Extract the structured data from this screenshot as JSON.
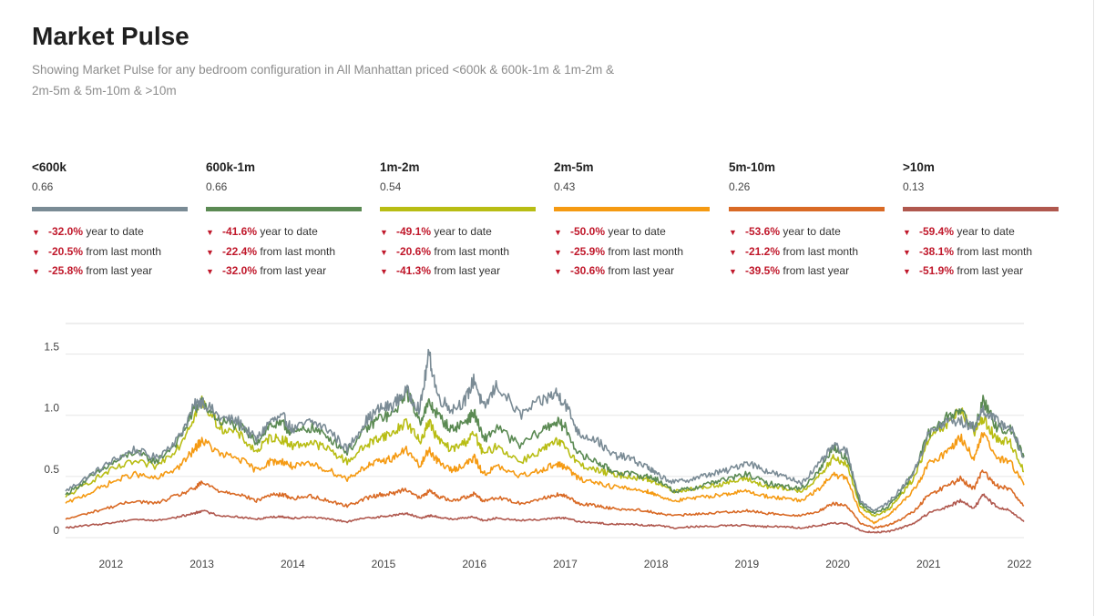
{
  "header": {
    "title": "Market Pulse",
    "subtitle": "Showing Market Pulse for any bedroom configuration in All Manhattan priced <600k & 600k-1m & 1m-2m & 2m-5m & 5m-10m & >10m"
  },
  "segments": [
    {
      "name": "<600k",
      "value": "0.66",
      "color": "#7a8b95",
      "ytd": "-32.0%",
      "mom": "-20.5%",
      "yoy": "-25.8%"
    },
    {
      "name": "600k-1m",
      "value": "0.66",
      "color": "#5b8a53",
      "ytd": "-41.6%",
      "mom": "-22.4%",
      "yoy": "-32.0%"
    },
    {
      "name": "1m-2m",
      "value": "0.54",
      "color": "#b8bd14",
      "ytd": "-49.1%",
      "mom": "-20.6%",
      "yoy": "-41.3%"
    },
    {
      "name": "2m-5m",
      "value": "0.43",
      "color": "#f59a12",
      "ytd": "-50.0%",
      "mom": "-25.9%",
      "yoy": "-30.6%"
    },
    {
      "name": "5m-10m",
      "value": "0.26",
      "color": "#d96a25",
      "ytd": "-53.6%",
      "mom": "-21.2%",
      "yoy": "-39.5%"
    },
    {
      "name": ">10m",
      "value": "0.13",
      "color": "#b0584e",
      "ytd": "-59.4%",
      "mom": "-38.1%",
      "yoy": "-51.9%"
    }
  ],
  "stat_labels": {
    "ytd": "year to date",
    "mom": "from last month",
    "yoy": "from last year"
  },
  "chart_data": {
    "type": "line",
    "xlim": [
      2011.5,
      2022.05
    ],
    "ylim": [
      0,
      1.75
    ],
    "x_ticks": [
      2012,
      2013,
      2014,
      2015,
      2016,
      2017,
      2018,
      2019,
      2020,
      2021,
      2022
    ],
    "x_tick_labels": [
      "2012",
      "2013",
      "2014",
      "2015",
      "2016",
      "2017",
      "2018",
      "2019",
      "2020",
      "2021",
      "2022"
    ],
    "y_ticks": [
      0,
      0.5,
      1.0,
      1.5
    ],
    "y_tick_labels": [
      "0",
      "0.5",
      "1.0",
      "1.5"
    ],
    "grid": true,
    "x": [
      2011.5,
      2011.75,
      2012.0,
      2012.25,
      2012.5,
      2012.75,
      2012.92,
      2013.0,
      2013.2,
      2013.4,
      2013.6,
      2013.75,
      2013.9,
      2014.0,
      2014.2,
      2014.4,
      2014.6,
      2014.8,
      2014.95,
      2015.1,
      2015.25,
      2015.4,
      2015.5,
      2015.6,
      2015.75,
      2015.9,
      2016.0,
      2016.1,
      2016.25,
      2016.5,
      2016.75,
      2016.9,
      2017.0,
      2017.15,
      2017.35,
      2017.5,
      2017.7,
      2017.9,
      2018.0,
      2018.2,
      2018.4,
      2018.6,
      2018.8,
      2019.0,
      2019.2,
      2019.4,
      2019.6,
      2019.8,
      2019.95,
      2020.1,
      2020.25,
      2020.4,
      2020.55,
      2020.7,
      2020.85,
      2021.0,
      2021.2,
      2021.35,
      2021.5,
      2021.6,
      2021.75,
      2021.9,
      2022.05
    ],
    "series": [
      {
        "name": "<600k",
        "values": [
          0.38,
          0.5,
          0.62,
          0.72,
          0.65,
          0.82,
          1.08,
          1.12,
          0.98,
          0.95,
          0.8,
          0.95,
          0.98,
          0.88,
          0.95,
          0.88,
          0.72,
          0.95,
          1.05,
          1.08,
          1.2,
          1.05,
          1.5,
          1.15,
          1.05,
          1.12,
          1.3,
          1.05,
          1.25,
          1.0,
          1.12,
          1.18,
          1.1,
          0.85,
          0.8,
          0.68,
          0.65,
          0.58,
          0.52,
          0.45,
          0.48,
          0.52,
          0.55,
          0.62,
          0.55,
          0.5,
          0.45,
          0.6,
          0.75,
          0.7,
          0.3,
          0.22,
          0.28,
          0.4,
          0.55,
          0.85,
          0.95,
          0.95,
          0.9,
          1.05,
          0.95,
          0.9,
          0.66
        ]
      },
      {
        "name": "600k-1m",
        "values": [
          0.35,
          0.48,
          0.6,
          0.7,
          0.62,
          0.8,
          1.05,
          1.1,
          0.95,
          0.92,
          0.78,
          0.92,
          0.92,
          0.85,
          0.9,
          0.82,
          0.7,
          0.88,
          0.98,
          1.0,
          1.2,
          0.95,
          1.1,
          1.0,
          0.88,
          0.95,
          1.02,
          0.8,
          0.9,
          0.75,
          0.88,
          0.95,
          0.9,
          0.68,
          0.62,
          0.55,
          0.52,
          0.5,
          0.48,
          0.38,
          0.4,
          0.45,
          0.48,
          0.52,
          0.45,
          0.42,
          0.4,
          0.55,
          0.75,
          0.65,
          0.28,
          0.2,
          0.25,
          0.38,
          0.55,
          0.85,
          0.98,
          1.05,
          0.88,
          1.12,
          0.9,
          0.88,
          0.66
        ]
      },
      {
        "name": "1m-2m",
        "values": [
          0.33,
          0.45,
          0.55,
          0.62,
          0.58,
          0.75,
          1.0,
          1.12,
          0.9,
          0.85,
          0.7,
          0.82,
          0.8,
          0.75,
          0.78,
          0.72,
          0.62,
          0.75,
          0.82,
          0.85,
          0.95,
          0.78,
          0.95,
          0.8,
          0.72,
          0.78,
          0.85,
          0.68,
          0.75,
          0.62,
          0.72,
          0.78,
          0.75,
          0.6,
          0.55,
          0.52,
          0.5,
          0.48,
          0.45,
          0.38,
          0.4,
          0.42,
          0.45,
          0.48,
          0.42,
          0.4,
          0.38,
          0.5,
          0.65,
          0.6,
          0.25,
          0.18,
          0.22,
          0.35,
          0.5,
          0.8,
          0.92,
          1.05,
          0.85,
          0.98,
          0.8,
          0.78,
          0.54
        ]
      },
      {
        "name": "2m-5m",
        "values": [
          0.28,
          0.36,
          0.45,
          0.52,
          0.48,
          0.58,
          0.72,
          0.8,
          0.68,
          0.65,
          0.55,
          0.62,
          0.62,
          0.58,
          0.6,
          0.55,
          0.48,
          0.58,
          0.62,
          0.65,
          0.72,
          0.58,
          0.72,
          0.62,
          0.55,
          0.6,
          0.65,
          0.52,
          0.58,
          0.5,
          0.56,
          0.6,
          0.58,
          0.48,
          0.45,
          0.42,
          0.4,
          0.38,
          0.35,
          0.3,
          0.32,
          0.34,
          0.36,
          0.38,
          0.34,
          0.32,
          0.3,
          0.4,
          0.52,
          0.48,
          0.2,
          0.12,
          0.18,
          0.28,
          0.4,
          0.6,
          0.7,
          0.82,
          0.65,
          0.85,
          0.65,
          0.62,
          0.43
        ]
      },
      {
        "name": "5m-10m",
        "values": [
          0.15,
          0.2,
          0.25,
          0.3,
          0.28,
          0.35,
          0.4,
          0.45,
          0.38,
          0.36,
          0.3,
          0.35,
          0.35,
          0.32,
          0.34,
          0.3,
          0.26,
          0.32,
          0.35,
          0.36,
          0.4,
          0.32,
          0.38,
          0.34,
          0.3,
          0.33,
          0.36,
          0.3,
          0.33,
          0.28,
          0.32,
          0.35,
          0.34,
          0.28,
          0.26,
          0.24,
          0.23,
          0.22,
          0.2,
          0.18,
          0.19,
          0.2,
          0.21,
          0.22,
          0.2,
          0.19,
          0.18,
          0.22,
          0.28,
          0.26,
          0.12,
          0.08,
          0.1,
          0.15,
          0.22,
          0.35,
          0.42,
          0.48,
          0.4,
          0.55,
          0.42,
          0.4,
          0.26
        ]
      },
      {
        "name": ">10m",
        "values": [
          0.08,
          0.1,
          0.12,
          0.15,
          0.14,
          0.17,
          0.2,
          0.22,
          0.18,
          0.17,
          0.15,
          0.17,
          0.17,
          0.16,
          0.17,
          0.15,
          0.13,
          0.16,
          0.17,
          0.18,
          0.2,
          0.16,
          0.18,
          0.17,
          0.15,
          0.16,
          0.17,
          0.14,
          0.16,
          0.14,
          0.15,
          0.16,
          0.16,
          0.13,
          0.12,
          0.11,
          0.11,
          0.1,
          0.1,
          0.08,
          0.09,
          0.09,
          0.1,
          0.1,
          0.09,
          0.09,
          0.08,
          0.1,
          0.12,
          0.11,
          0.06,
          0.04,
          0.05,
          0.08,
          0.12,
          0.2,
          0.25,
          0.3,
          0.24,
          0.35,
          0.25,
          0.22,
          0.13
        ]
      }
    ]
  }
}
